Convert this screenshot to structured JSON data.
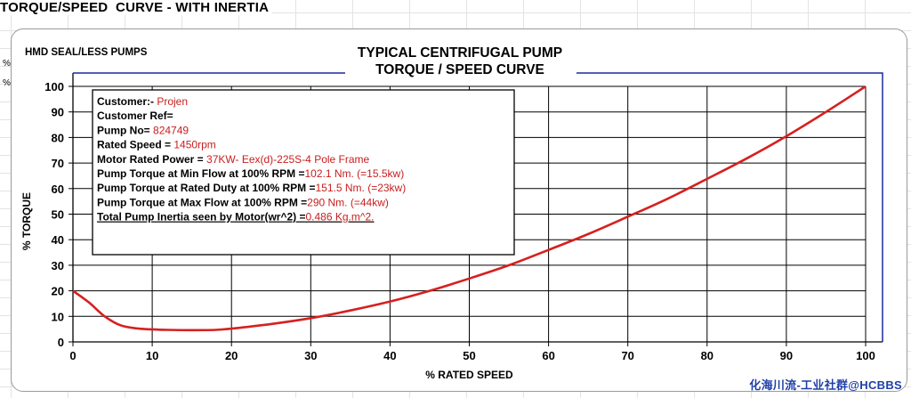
{
  "sheet": {
    "title": "TORQUE/SPEED  CURVE - WITH INERTIA",
    "row_fragments": [
      "%",
      "%"
    ]
  },
  "watermark": "化海川流-工业社群@HCBBS",
  "chart_data": {
    "type": "line",
    "subtitle": "HMD SEAL/LESS PUMPS",
    "title_line1": "TYPICAL CENTRIFUGAL PUMP",
    "title_line2": "TORQUE / SPEED CURVE",
    "xlabel": "% RATED SPEED",
    "ylabel": "% TORQUE",
    "xlim": [
      0,
      100
    ],
    "ylim": [
      0,
      100
    ],
    "x_ticks": [
      0,
      10,
      20,
      30,
      40,
      50,
      60,
      70,
      80,
      90,
      100
    ],
    "y_ticks": [
      0,
      10,
      20,
      30,
      40,
      50,
      60,
      70,
      80,
      90,
      100
    ],
    "grid": true,
    "series": [
      {
        "color": "#d62020",
        "x": [
          0,
          2,
          4,
          6,
          8,
          10,
          12,
          15,
          18,
          20,
          25,
          30,
          35,
          40,
          45,
          50,
          55,
          60,
          65,
          70,
          75,
          80,
          85,
          90,
          95,
          100
        ],
        "y": [
          20,
          15.5,
          10,
          6.5,
          5.3,
          4.9,
          4.7,
          4.6,
          4.7,
          5.2,
          7,
          9.3,
          12.3,
          15.8,
          20,
          24.8,
          30,
          36,
          42.2,
          49,
          56,
          63.8,
          71.8,
          80.5,
          90,
          100
        ]
      }
    ],
    "info_box": {
      "lines": [
        {
          "label": "Customer:- ",
          "value": "Projen"
        },
        {
          "label": "Customer Ref=",
          "value": ""
        },
        {
          "label": "Pump No= ",
          "value": "824749"
        },
        {
          "label": "Rated Speed = ",
          "value": "1450rpm"
        },
        {
          "label": "Motor Rated Power = ",
          "value": "37KW- Eex(d)-225S-4 Pole Frame"
        },
        {
          "label": "Pump Torque at Min Flow at 100% RPM =",
          "value": "102.1 Nm. (=15.5kw)"
        },
        {
          "label": "Pump Torque at Rated Duty at 100% RPM =",
          "value": "151.5 Nm. (=23kw)"
        },
        {
          "label": "Pump Torque at Max Flow at 100% RPM =",
          "value": "290 Nm. (=44kw)"
        },
        {
          "label": "Total Pump Inertia seen by Motor(wr^2) =",
          "value": "0.486 Kg.m^2."
        }
      ]
    }
  }
}
